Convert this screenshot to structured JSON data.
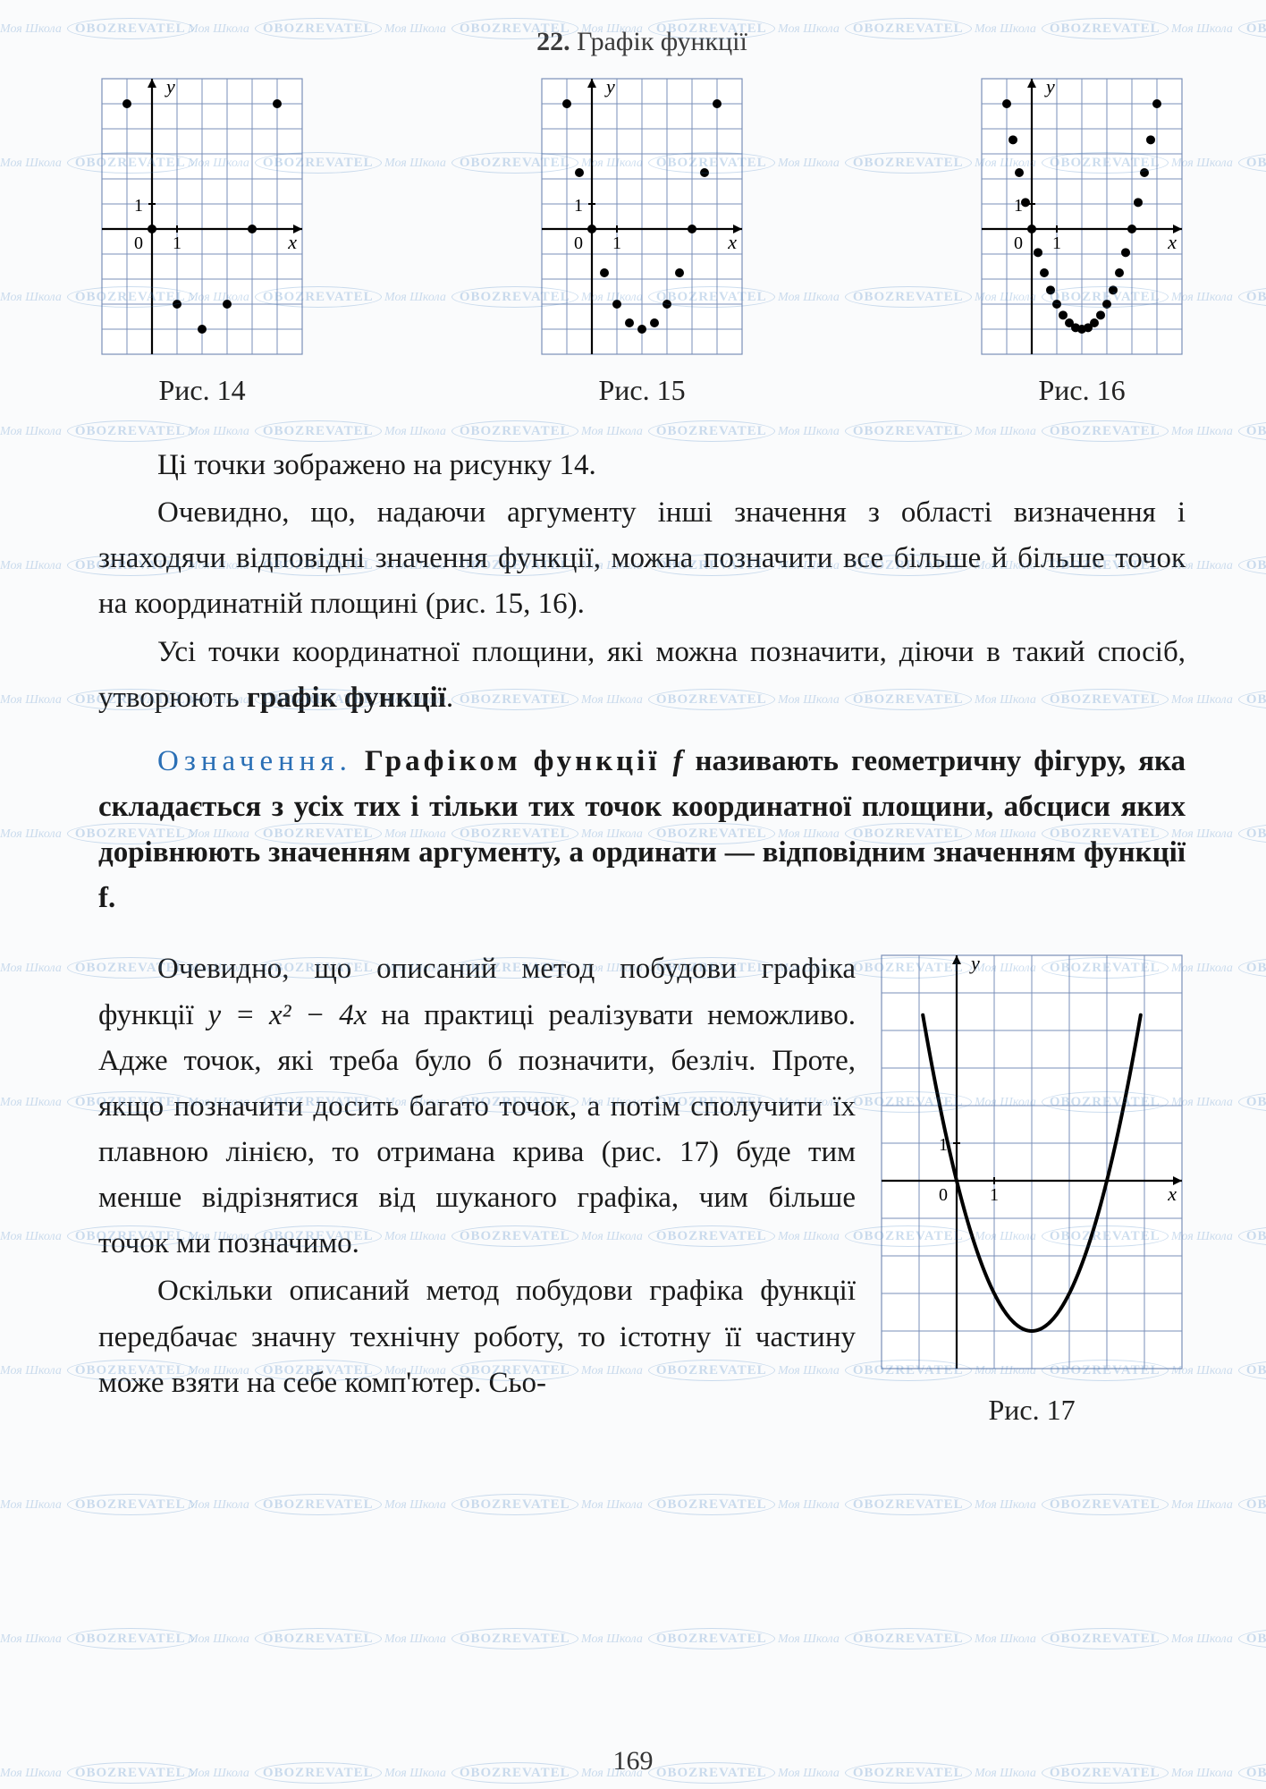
{
  "header": {
    "number": "22.",
    "title": "Графік функції"
  },
  "figures": {
    "grid_color": "#7a8fb8",
    "axis_color": "#000000",
    "point_color": "#000000",
    "bg_color": "#ffffff",
    "cell": 28,
    "f14": {
      "caption": "Рис. 14",
      "x_range": [
        -2,
        6
      ],
      "y_range": [
        -5,
        6
      ],
      "axis_labels": {
        "y": "y",
        "x": "x",
        "origin": "0",
        "one_y": "1",
        "one_x": "1"
      },
      "points": [
        [
          -1,
          5
        ],
        [
          0,
          0
        ],
        [
          1,
          -3
        ],
        [
          2,
          -4
        ],
        [
          3,
          -3
        ],
        [
          4,
          0
        ],
        [
          5,
          5
        ]
      ]
    },
    "f15": {
      "caption": "Рис. 15",
      "x_range": [
        -2,
        6
      ],
      "y_range": [
        -5,
        6
      ],
      "axis_labels": {
        "y": "y",
        "x": "x",
        "origin": "0",
        "one_y": "1",
        "one_x": "1"
      },
      "points": [
        [
          -1,
          5
        ],
        [
          -0.5,
          2.25
        ],
        [
          0,
          0
        ],
        [
          0.5,
          -1.75
        ],
        [
          1,
          -3
        ],
        [
          1.5,
          -3.75
        ],
        [
          2,
          -4
        ],
        [
          2.5,
          -3.75
        ],
        [
          3,
          -3
        ],
        [
          3.5,
          -1.75
        ],
        [
          4,
          0
        ],
        [
          4.5,
          2.25
        ],
        [
          5,
          5
        ]
      ]
    },
    "f16": {
      "caption": "Рис. 16",
      "x_range": [
        -2,
        6
      ],
      "y_range": [
        -5,
        6
      ],
      "axis_labels": {
        "y": "y",
        "x": "x",
        "origin": "0",
        "one_y": "1",
        "one_x": "1"
      },
      "points": [
        [
          -1,
          5
        ],
        [
          -0.75,
          3.56
        ],
        [
          -0.5,
          2.25
        ],
        [
          -0.25,
          1.06
        ],
        [
          0,
          0
        ],
        [
          0.25,
          -0.94
        ],
        [
          0.5,
          -1.75
        ],
        [
          0.75,
          -2.44
        ],
        [
          1,
          -3
        ],
        [
          1.25,
          -3.44
        ],
        [
          1.5,
          -3.75
        ],
        [
          1.75,
          -3.94
        ],
        [
          2,
          -4
        ],
        [
          2.25,
          -3.94
        ],
        [
          2.5,
          -3.75
        ],
        [
          2.75,
          -3.44
        ],
        [
          3,
          -3
        ],
        [
          3.25,
          -2.44
        ],
        [
          3.5,
          -1.75
        ],
        [
          3.75,
          -0.94
        ],
        [
          4,
          0
        ],
        [
          4.25,
          1.06
        ],
        [
          4.5,
          2.25
        ],
        [
          4.75,
          3.56
        ],
        [
          5,
          5
        ]
      ]
    },
    "f17": {
      "caption": "Рис. 17",
      "x_range": [
        -2,
        6
      ],
      "y_range": [
        -5,
        6
      ],
      "axis_labels": {
        "y": "y",
        "x": "x",
        "origin": "0",
        "one_y": "1",
        "one_x": "1"
      },
      "curve_color": "#000000",
      "curve_width": 4,
      "curve": "parabola_y_eq_x2_minus_4x"
    }
  },
  "text": {
    "p1": "Ці точки зображено на рисунку 14.",
    "p2": "Очевидно, що, надаючи аргументу інші значення з області визначення і знаходячи відповідні значення функції, можна позначити все більше й більше точок на координатній площині (рис. 15, 16).",
    "p3_a": "Усі точки координатної площини, які можна позначити, діючи в такий спосіб, утворюють ",
    "p3_b": "графік функції",
    "p3_c": ".",
    "def_label": "Означення.",
    "def_a": "Графіком",
    "def_b": "функції",
    "def_c": " f ",
    "def_rest": "називають геометричну фігуру, яка складається з усіх тих і тільки тих точок координатної площини, абсциси яких дорівнюють значенням аргументу, а ординати — відповідним значенням функції f.",
    "p5_a": "Очевидно, що описаний метод побудови графіка функції ",
    "p5_formula": "y = x² − 4x",
    "p5_b": " на практиці реалізувати неможливо. Адже точок, які треба було б позначити, безліч. Проте, якщо позначити досить багато точок, а потім сполучити їх плавною лінією, то отримана крива (рис. 17) буде тим менше відрізнятися від шуканого графіка, чим більше точок ми позначимо.",
    "p6": "Оскільки описаний метод побудови графіка функції передбачає значну технічну роботу, то істотну її частину може взяти на себе комп'ютер. Сьо-"
  },
  "page_number": "169",
  "watermark": {
    "line1": "Моя Школа",
    "line2": "OBOZREVATEL"
  }
}
